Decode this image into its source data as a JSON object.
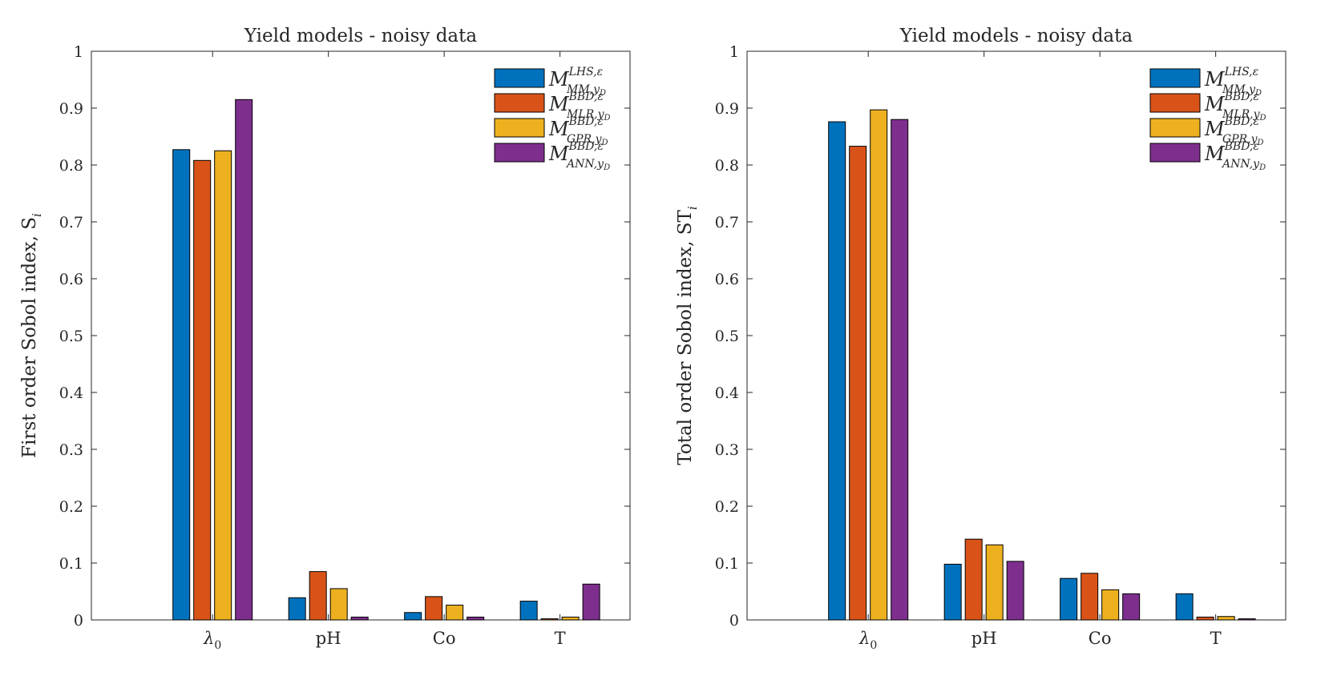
{
  "chart_data": [
    {
      "type": "bar",
      "title": "Yield models - noisy data",
      "ylabel": "First order Sobol index, S",
      "ylabel_sub": "i",
      "categories": [
        "λ0",
        "pH",
        "Co",
        "T"
      ],
      "ylim": [
        0,
        1
      ],
      "yticks": [
        "0",
        "0.1",
        "0.2",
        "0.3",
        "0.4",
        "0.5",
        "0.6",
        "0.7",
        "0.8",
        "0.9",
        "1"
      ],
      "grid": false,
      "legend_position": "top-right",
      "series": [
        {
          "name": "M MM,yD LHS,ε",
          "values": [
            0.827,
            0.039,
            0.013,
            0.033
          ]
        },
        {
          "name": "M MLR,yD BBD,ε",
          "values": [
            0.808,
            0.085,
            0.041,
            0.002
          ]
        },
        {
          "name": "M GPR,yD BBD,ε",
          "values": [
            0.825,
            0.055,
            0.026,
            0.005
          ]
        },
        {
          "name": "M ANN,yD BBD,ε",
          "values": [
            0.915,
            0.005,
            0.005,
            0.063
          ]
        }
      ]
    },
    {
      "type": "bar",
      "title": "Yield models - noisy data",
      "ylabel": "Total order Sobol index, ST",
      "ylabel_sub": "i",
      "categories": [
        "λ0",
        "pH",
        "Co",
        "T"
      ],
      "ylim": [
        0,
        1
      ],
      "yticks": [
        "0",
        "0.1",
        "0.2",
        "0.3",
        "0.4",
        "0.5",
        "0.6",
        "0.7",
        "0.8",
        "0.9",
        "1"
      ],
      "grid": false,
      "legend_position": "top-right",
      "series": [
        {
          "name": "M MM,yD LHS,ε",
          "values": [
            0.876,
            0.098,
            0.073,
            0.046
          ]
        },
        {
          "name": "M MLR,yD BBD,ε",
          "values": [
            0.833,
            0.142,
            0.082,
            0.005
          ]
        },
        {
          "name": "M GPR,yD BBD,ε",
          "values": [
            0.897,
            0.132,
            0.053,
            0.006
          ]
        },
        {
          "name": "M ANN,yD BBD,ε",
          "values": [
            0.88,
            0.103,
            0.046,
            0.002
          ]
        }
      ]
    }
  ],
  "colors": [
    "#0072BD",
    "#D95319",
    "#EDB120",
    "#7E2F8E"
  ],
  "legend": [
    {
      "script": "M",
      "sup": "LHS,ε",
      "sub": "MM,y",
      "subsub": "D"
    },
    {
      "script": "M",
      "sup": "BBD,ε",
      "sub": "MLR,y",
      "subsub": "D"
    },
    {
      "script": "M",
      "sup": "BBD,ε",
      "sub": "GPR,y",
      "subsub": "D"
    },
    {
      "script": "M",
      "sup": "BBD,ε",
      "sub": "ANN,y",
      "subsub": "D"
    }
  ]
}
